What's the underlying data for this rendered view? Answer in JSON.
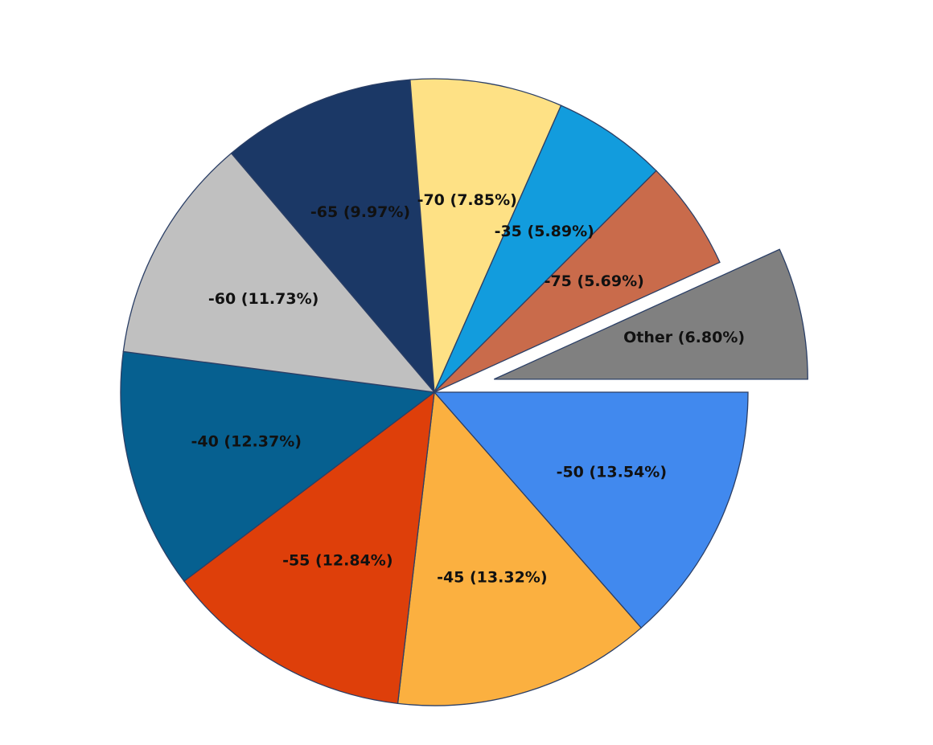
{
  "chart_data": {
    "type": "pie",
    "title": "",
    "start_angle_deg": 0,
    "direction": "clockwise",
    "slices": [
      {
        "value": "-50",
        "percent": 13.54,
        "label": "-50 (13.54%)",
        "color": "#4189ee",
        "exploded": false
      },
      {
        "value": "-45",
        "percent": 13.32,
        "label": "-45 (13.32%)",
        "color": "#fbb040",
        "exploded": false
      },
      {
        "value": "-55",
        "percent": 12.84,
        "label": "-55 (12.84%)",
        "color": "#de3f0a",
        "exploded": false
      },
      {
        "value": "-40",
        "percent": 12.37,
        "label": "-40 (12.37%)",
        "color": "#066090",
        "exploded": false
      },
      {
        "value": "-60",
        "percent": 11.73,
        "label": "-60 (11.73%)",
        "color": "#c0c0c0",
        "exploded": false
      },
      {
        "value": "-65",
        "percent": 9.97,
        "label": "-65 (9.97%)",
        "color": "#1b3866",
        "exploded": false
      },
      {
        "value": "-70",
        "percent": 7.85,
        "label": "-70 (7.85%)",
        "color": "#fee185",
        "exploded": false
      },
      {
        "value": "-35",
        "percent": 5.89,
        "label": "-35 (5.89%)",
        "color": "#129cdd",
        "exploded": false
      },
      {
        "value": "-75",
        "percent": 5.69,
        "label": "-75 (5.69%)",
        "color": "#c96b4b",
        "exploded": false
      },
      {
        "value": "Other",
        "percent": 6.8,
        "label": "Other (6.80%)",
        "color": "#808080",
        "exploded": true
      }
    ],
    "legend": "none",
    "grid": false
  }
}
